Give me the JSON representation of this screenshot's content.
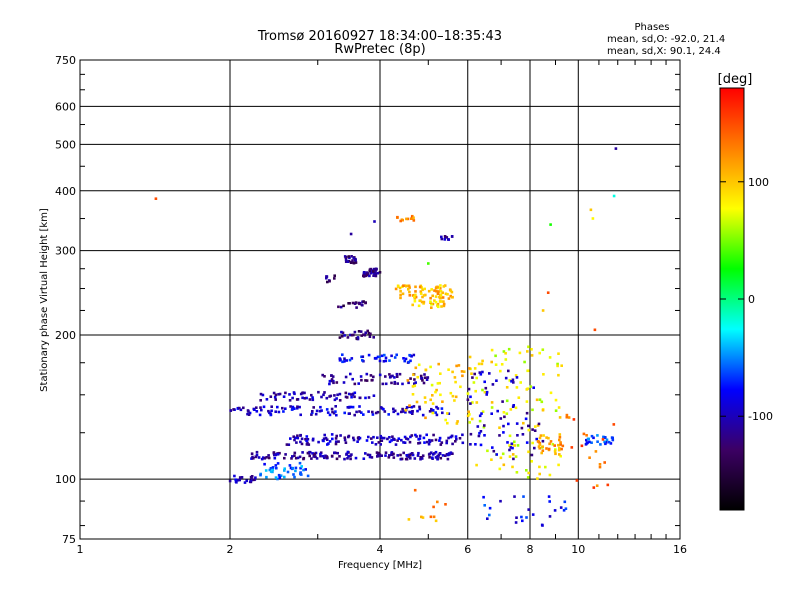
{
  "chart_data": {
    "type": "scatter",
    "title": "Tromsø 20160927 18:34:00–18:35:43",
    "subtitle": "RwPretec (8p)",
    "xlabel": "Frequency [MHz]",
    "ylabel": "Stationary phase Virtual Height [km]",
    "x_scale": "log",
    "y_scale": "log",
    "xlim": [
      1,
      16
    ],
    "ylim": [
      75,
      750
    ],
    "x_ticks": [
      1,
      2,
      4,
      6,
      8,
      10,
      16
    ],
    "y_ticks": [
      75,
      100,
      200,
      300,
      400,
      500,
      600,
      750
    ],
    "grid": true,
    "stats": {
      "heading": "Phases",
      "o_line": "mean, sd,O: -92.0, 21.4",
      "x_line": "mean, sd,X:  90.1, 24.4"
    },
    "colorbar": {
      "label": "[deg]",
      "range": [
        -180,
        180
      ],
      "ticks": [
        100,
        0,
        -100
      ],
      "colors": [
        "#000000",
        "#3c0064",
        "#0000ff",
        "#00ffff",
        "#00ff00",
        "#ffff00",
        "#ff8000",
        "#ff0000"
      ]
    },
    "clusters": [
      {
        "x": [
          2.0,
          2.25
        ],
        "y": [
          98,
          102
        ],
        "phase": -100,
        "n": 22
      },
      {
        "x": [
          2.3,
          2.9
        ],
        "y": [
          100,
          108
        ],
        "phase": -60,
        "n": 40
      },
      {
        "x": [
          2.2,
          5.6
        ],
        "y": [
          110,
          114
        ],
        "phase": -110,
        "n": 160
      },
      {
        "x": [
          2.6,
          6.0
        ],
        "y": [
          118,
          124
        ],
        "phase": -100,
        "n": 120
      },
      {
        "x": [
          2.0,
          5.5
        ],
        "y": [
          136,
          142
        ],
        "phase": -95,
        "n": 120
      },
      {
        "x": [
          2.3,
          3.9
        ],
        "y": [
          146,
          152
        ],
        "phase": -105,
        "n": 60
      },
      {
        "x": [
          3.0,
          5.0
        ],
        "y": [
          158,
          166
        ],
        "phase": -110,
        "n": 60
      },
      {
        "x": [
          3.3,
          4.8
        ],
        "y": [
          175,
          182
        ],
        "phase": -80,
        "n": 40
      },
      {
        "x": [
          3.3,
          3.9
        ],
        "y": [
          196,
          204
        ],
        "phase": -120,
        "n": 25
      },
      {
        "x": [
          3.3,
          3.8
        ],
        "y": [
          228,
          236
        ],
        "phase": -125,
        "n": 18
      },
      {
        "x": [
          3.4,
          3.6
        ],
        "y": [
          282,
          292
        ],
        "phase": -120,
        "n": 22
      },
      {
        "x": [
          3.7,
          4.0
        ],
        "y": [
          265,
          275
        ],
        "phase": -120,
        "n": 30
      },
      {
        "x": [
          3.1,
          3.3
        ],
        "y": [
          258,
          266
        ],
        "phase": -120,
        "n": 8
      },
      {
        "x": [
          5.3,
          5.6
        ],
        "y": [
          316,
          322
        ],
        "phase": -110,
        "n": 10
      },
      {
        "x": [
          4.3,
          5.6
        ],
        "y": [
          238,
          254
        ],
        "phase": 105,
        "n": 70
      },
      {
        "x": [
          4.6,
          5.4
        ],
        "y": [
          228,
          236
        ],
        "phase": 95,
        "n": 25
      },
      {
        "x": [
          4.3,
          4.7
        ],
        "y": [
          345,
          355
        ],
        "phase": 130,
        "n": 12
      },
      {
        "x": [
          4.5,
          6.3
        ],
        "y": [
          130,
          175
        ],
        "phase": 95,
        "n": 60
      },
      {
        "x": [
          6.0,
          9.3
        ],
        "y": [
          100,
          190
        ],
        "phase": 80,
        "n": 110
      },
      {
        "x": [
          6.0,
          8.5
        ],
        "y": [
          110,
          170
        ],
        "phase": -100,
        "n": 70
      },
      {
        "x": [
          8.3,
          9.3
        ],
        "y": [
          112,
          124
        ],
        "phase": 115,
        "n": 30
      },
      {
        "x": [
          10.2,
          11.8
        ],
        "y": [
          118,
          124
        ],
        "phase": -70,
        "n": 25
      },
      {
        "x": [
          6.2,
          9.5
        ],
        "y": [
          80,
          92
        ],
        "phase": -80,
        "n": 25
      },
      {
        "x": [
          4.5,
          5.5
        ],
        "y": [
          80,
          95
        ],
        "phase": 120,
        "n": 10
      },
      {
        "x": [
          9.2,
          11.8
        ],
        "y": [
          95,
          140
        ],
        "phase": 140,
        "n": 20
      }
    ],
    "outliers": [
      {
        "x": 1.42,
        "y": 385,
        "phase": 150
      },
      {
        "x": 11.8,
        "y": 390,
        "phase": -20
      },
      {
        "x": 11.9,
        "y": 490,
        "phase": -110
      },
      {
        "x": 10.6,
        "y": 365,
        "phase": 100
      },
      {
        "x": 10.7,
        "y": 350,
        "phase": 80
      },
      {
        "x": 8.8,
        "y": 340,
        "phase": 30
      },
      {
        "x": 3.9,
        "y": 345,
        "phase": -100
      },
      {
        "x": 3.5,
        "y": 325,
        "phase": -110
      },
      {
        "x": 5.0,
        "y": 282,
        "phase": 40
      },
      {
        "x": 10.8,
        "y": 205,
        "phase": 150
      },
      {
        "x": 8.7,
        "y": 245,
        "phase": 150
      },
      {
        "x": 8.5,
        "y": 225,
        "phase": 100
      }
    ]
  }
}
